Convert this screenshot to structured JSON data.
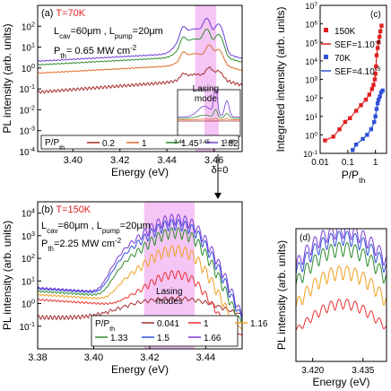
{
  "chart_data": [
    {
      "id": "a",
      "type": "line",
      "panel_label": "(a)",
      "temp_label": "T=70K",
      "line1": "L",
      "line1_sub": "cav",
      "line1_mid": "=60μm , L",
      "line1_sub2": "pump",
      "line1_end": "=20μm",
      "line2_a": "P",
      "line2_sub": "th",
      "line2_b": "= 0.65 MW cm",
      "line2_sup": "-2",
      "xlabel": "Energy (eV)",
      "ylabel": "PL intensity (arb. units)",
      "xlim": [
        3.385,
        3.472
      ],
      "ylim_log10": [
        -4,
        3
      ],
      "x_ticks": [
        "3.40",
        "3.42",
        "3.44",
        "3.46"
      ],
      "y_ticks_exp": [
        "-4",
        "-3",
        "-2",
        "-1",
        "0",
        "1",
        "2"
      ],
      "shade_label_1": "Lasing",
      "shade_label_2": "mode",
      "shade_range": [
        3.452,
        3.461
      ],
      "inset_ticks": [
        "3.44",
        "3.45",
        "3.46"
      ],
      "legend_title_a": "P/P",
      "legend_title_sub": "th",
      "legend_scale": "log",
      "series": [
        {
          "name": "0.2",
          "color": "#a52a2a",
          "peak": 3.458,
          "base": 0.3,
          "peak_amp": 0.7
        },
        {
          "name": "1",
          "color": "#e06a2a",
          "peak": 3.458,
          "base": 1.6,
          "peak_amp": 10
        },
        {
          "name": "1.45",
          "color": "#2e8b2e",
          "peak": 3.457,
          "base": 4,
          "peak_amp": 60
        },
        {
          "name": "1.82",
          "color": "#6a3dd6",
          "peak": 3.457,
          "base": 6,
          "peak_amp": 200
        }
      ]
    },
    {
      "id": "b",
      "type": "line",
      "panel_label": "(b)",
      "temp_label": "T=150K",
      "line1": "L",
      "line1_sub": "cav",
      "line1_mid": "=60μm , L",
      "line1_sub2": "pump",
      "line1_end": "=20μm",
      "line2_a": "P",
      "line2_sub": "th",
      "line2_b": "=2.25 MW cm",
      "line2_sup": "-2",
      "xlabel": "Energy (eV)",
      "ylabel": "PL intensity (arb. units)",
      "xlim": [
        3.38,
        3.453
      ],
      "ylim_log10": [
        -2,
        4.5
      ],
      "x_ticks": [
        "3.38",
        "3.40",
        "3.42",
        "3.44"
      ],
      "y_ticks_exp": [
        "-1",
        "0",
        "1",
        "2",
        "3",
        "4"
      ],
      "shade_label_1": "Lasing",
      "shade_label_2": "modes",
      "shade_range": [
        3.418,
        3.436
      ],
      "legend_title_a": "P/P",
      "legend_title_sub": "th",
      "series": [
        {
          "name": "0.041",
          "color": "#a52a2a",
          "base": 0.25,
          "bump": 1.5,
          "center": 3.429,
          "width": 0.012,
          "modes": 0.2
        },
        {
          "name": "1",
          "color": "#e83030",
          "base": 1.5,
          "bump": 20,
          "center": 3.429,
          "width": 0.006,
          "modes": 0.4
        },
        {
          "name": "1.16",
          "color": "#f0a020",
          "base": 2.5,
          "bump": 250,
          "center": 3.429,
          "width": 0.006,
          "modes": 0.5
        },
        {
          "name": "1.33",
          "color": "#2e8b2e",
          "base": 3.5,
          "bump": 1500,
          "center": 3.429,
          "width": 0.006,
          "modes": 0.5
        },
        {
          "name": "1.5",
          "color": "#3050d8",
          "base": 4.5,
          "bump": 3500,
          "center": 3.429,
          "width": 0.006,
          "modes": 0.5
        },
        {
          "name": "1.66",
          "color": "#7a3dd6",
          "base": 5,
          "bump": 6000,
          "center": 3.429,
          "width": 0.006,
          "modes": 0.5
        }
      ]
    },
    {
      "id": "c",
      "type": "scatter",
      "panel_label": "(c)",
      "xlabel": "P/P",
      "xlabel_sub": "th",
      "ylabel": "Integrated intensity (arb. units)",
      "xlim_log10": [
        -2,
        0.4
      ],
      "ylim_log10": [
        -1,
        7
      ],
      "x_ticks": [
        "0.01",
        "0.1",
        "1"
      ],
      "y_ticks_exp": [
        "-1",
        "0",
        "1",
        "2",
        "3",
        "4",
        "5",
        "6",
        "7"
      ],
      "series": [
        {
          "name": "150K",
          "color": "#e02020",
          "marker": "square",
          "x": [
            0.015,
            0.03,
            0.05,
            0.08,
            0.12,
            0.2,
            0.3,
            0.45,
            0.6,
            0.75,
            0.85,
            0.95,
            1.0,
            1.05,
            1.1,
            1.2,
            1.3,
            1.4,
            1.5,
            1.66
          ],
          "y": [
            0.5,
            0.8,
            2,
            5,
            8,
            20,
            40,
            80,
            150,
            300,
            500,
            1000,
            2000,
            5000,
            20000,
            50000,
            100000,
            200000,
            400000,
            800000
          ]
        },
        {
          "name": "70K",
          "color": "#3050d8",
          "marker": "square",
          "x": [
            0.15,
            0.2,
            0.35,
            0.5,
            0.7,
            0.9,
            1.0,
            1.1,
            1.2,
            1.3,
            1.45,
            1.6,
            1.82
          ],
          "y": [
            0.15,
            0.3,
            0.6,
            1.0,
            2.0,
            5,
            10,
            25,
            50,
            80,
            120,
            200,
            250
          ]
        }
      ],
      "fits": [
        {
          "name": "SEF=1.10",
          "sup": "-4",
          "color": "#e02020"
        },
        {
          "name": "SEF=4.10",
          "sup": "-3",
          "color": "#3050d8"
        }
      ]
    },
    {
      "id": "d",
      "type": "line",
      "panel_label": "(d)",
      "xlabel": "Energy (eV)",
      "ylabel": "PL intensity (arb. units)",
      "xlim": [
        3.415,
        3.442
      ],
      "x_ticks": [
        "3.420",
        "3.435"
      ]
    }
  ],
  "annotation_delta": "δ=0"
}
